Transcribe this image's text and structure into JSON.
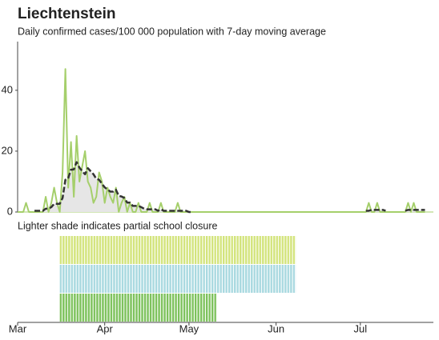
{
  "chart_data": {
    "type": "line",
    "title": "Liechtenstein",
    "subtitle": "Daily confirmed cases/100 000 population with 7-day moving average",
    "x": [
      0,
      1,
      2,
      3,
      4,
      5,
      6,
      7,
      8,
      9,
      10,
      11,
      12,
      13,
      14,
      15,
      16,
      17,
      18,
      19,
      20,
      21,
      22,
      23,
      24,
      25,
      26,
      27,
      28,
      29,
      30,
      31,
      32,
      33,
      34,
      35,
      36,
      37,
      38,
      39,
      40,
      41,
      42,
      43,
      44,
      45,
      46,
      47,
      48,
      49,
      50,
      51,
      52,
      53,
      54,
      55,
      56,
      57,
      58,
      59,
      60,
      61,
      62,
      63,
      64,
      65,
      66,
      67,
      68,
      69,
      70,
      71,
      72,
      73,
      74,
      75,
      76,
      77,
      78,
      79,
      80,
      81,
      82,
      83,
      84,
      85,
      86,
      87,
      88,
      89,
      90,
      91,
      92,
      93,
      94,
      95,
      96,
      97,
      98,
      99,
      100,
      101,
      102,
      103,
      104,
      105,
      106,
      107,
      108,
      109,
      110,
      111,
      112,
      113,
      114,
      115,
      116,
      117,
      118,
      119,
      120,
      121,
      122,
      123,
      124,
      125,
      126,
      127,
      128,
      129,
      130,
      131,
      132,
      133,
      134,
      135,
      136,
      137,
      138,
      139,
      140,
      141,
      142,
      143,
      144,
      145
    ],
    "series": [
      {
        "color": "#a5cf6b",
        "values": [
          0,
          0,
          0,
          3,
          0,
          0,
          0,
          0,
          0,
          0,
          5,
          0,
          3,
          8,
          3,
          0,
          13,
          47,
          8,
          23,
          5,
          25,
          10,
          15,
          20,
          10,
          8,
          3,
          5,
          13,
          10,
          3,
          8,
          5,
          3,
          8,
          0,
          3,
          5,
          0,
          3,
          0,
          0,
          3,
          0,
          0,
          0,
          3,
          0,
          0,
          0,
          3,
          0,
          0,
          0,
          0,
          0,
          3,
          0,
          0,
          0,
          0,
          0,
          0,
          0,
          0,
          0,
          0,
          0,
          0,
          0,
          0,
          0,
          0,
          0,
          0,
          0,
          0,
          0,
          0,
          0,
          0,
          0,
          0,
          0,
          0,
          0,
          0,
          0,
          0,
          0,
          0,
          0,
          0,
          0,
          0,
          0,
          0,
          0,
          0,
          0,
          0,
          0,
          0,
          0,
          0,
          0,
          0,
          0,
          0,
          0,
          0,
          0,
          0,
          0,
          0,
          0,
          0,
          0,
          0,
          0,
          0,
          0,
          0,
          0,
          3,
          0,
          0,
          3,
          0,
          0,
          0,
          0,
          0,
          0,
          0,
          0,
          0,
          0,
          3,
          0,
          3,
          0,
          0,
          0,
          0
        ]
      },
      {
        "color": "#333333",
        "dashed": true,
        "fill": "#e6e6e6",
        "values": [
          null,
          null,
          null,
          null,
          null,
          null,
          0.4,
          0.4,
          0.4,
          0.4,
          1.1,
          1.1,
          1.6,
          2.7,
          2.7,
          2.7,
          4.6,
          10.6,
          11.1,
          13.9,
          14.0,
          16.4,
          14.6,
          13.4,
          12.4,
          14.4,
          13.4,
          12.4,
          10.9,
          10.6,
          9.3,
          8.1,
          7.4,
          6.7,
          6.7,
          7.3,
          5.3,
          5.1,
          4.6,
          3.1,
          3.1,
          2.0,
          2.0,
          2.0,
          1.6,
          1.1,
          0.9,
          0.9,
          0.9,
          0.9,
          0.4,
          0.9,
          0.4,
          0.4,
          0.4,
          0.4,
          0.4,
          0.4,
          0.4,
          0.4,
          0.4,
          0,
          0,
          null,
          null,
          null,
          null,
          null,
          null,
          null,
          null,
          null,
          null,
          null,
          null,
          null,
          null,
          null,
          null,
          null,
          null,
          null,
          null,
          null,
          null,
          null,
          null,
          null,
          null,
          null,
          null,
          null,
          null,
          null,
          null,
          null,
          null,
          null,
          null,
          null,
          null,
          null,
          null,
          null,
          null,
          null,
          null,
          null,
          null,
          null,
          null,
          null,
          null,
          null,
          null,
          null,
          null,
          null,
          null,
          null,
          null,
          null,
          null,
          null,
          0.4,
          0.4,
          0.7,
          0.7,
          0.7,
          0.7,
          0.7,
          0.4,
          null,
          null,
          null,
          null,
          null,
          null,
          0.4,
          0.7,
          0.7,
          0.7,
          0.7,
          0.7,
          0.7,
          0.7
        ]
      }
    ],
    "xlim": [
      0,
      148
    ],
    "xticks": [
      {
        "value": 0,
        "label": "Mar"
      },
      {
        "value": 31,
        "label": "Apr"
      },
      {
        "value": 61,
        "label": "May"
      },
      {
        "value": 92,
        "label": "Jun"
      },
      {
        "value": 122,
        "label": "Jul"
      }
    ],
    "ylim": [
      0,
      56
    ],
    "yticks": [
      0,
      20,
      40
    ],
    "closure_note": "Lighter shade indicates partial school closure",
    "closures": [
      {
        "color": "#d3e47c",
        "start": 15,
        "end": 99
      },
      {
        "color": "#a9d9e0",
        "start": 15,
        "end": 99
      },
      {
        "color": "#7dc25c",
        "start": 15,
        "end": 71
      }
    ]
  }
}
